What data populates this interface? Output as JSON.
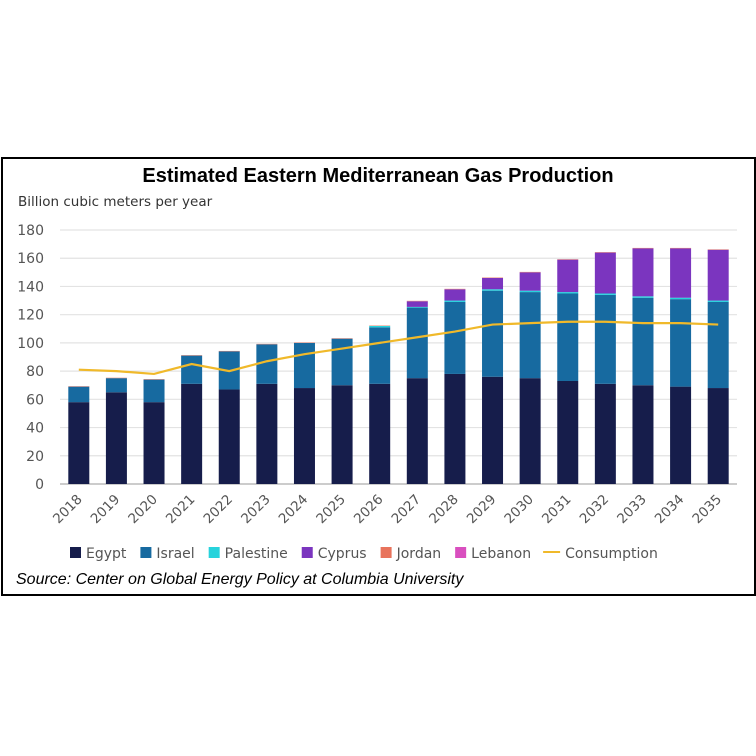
{
  "chart_data": {
    "type": "bar",
    "stacked": true,
    "title": "Estimated Eastern Mediterranean Gas Production",
    "ylabel": "Billion cubic meters per year",
    "xlabel": "",
    "ylim": [
      0,
      180
    ],
    "yticks": [
      0,
      20,
      40,
      60,
      80,
      100,
      120,
      140,
      160,
      180
    ],
    "grid": true,
    "legend_position": "bottom",
    "categories": [
      "2018",
      "2019",
      "2020",
      "2021",
      "2022",
      "2023",
      "2024",
      "2025",
      "2026",
      "2027",
      "2028",
      "2029",
      "2030",
      "2031",
      "2032",
      "2033",
      "2034",
      "2035"
    ],
    "series": [
      {
        "name": "Egypt",
        "color": "#161d4b",
        "values": [
          58,
          65,
          58,
          71,
          67,
          71,
          68,
          70,
          71,
          75,
          78,
          76,
          75,
          73,
          71,
          70,
          69,
          68
        ]
      },
      {
        "name": "Israel",
        "color": "#176aa0",
        "values": [
          11,
          10,
          16,
          20,
          27,
          28,
          32,
          33,
          40,
          50,
          51,
          61,
          61,
          62,
          63,
          62,
          62,
          61
        ]
      },
      {
        "name": "Palestine",
        "color": "#27d3dc",
        "values": [
          0,
          0,
          0,
          0,
          0,
          0,
          0,
          0,
          1,
          0.5,
          1,
          1,
          1,
          1,
          1,
          1,
          1,
          1
        ]
      },
      {
        "name": "Cyprus",
        "color": "#7b35bf",
        "values": [
          0,
          0,
          0,
          0,
          0,
          0,
          0,
          0,
          0,
          4,
          8,
          8,
          13,
          23,
          29,
          34,
          35,
          36
        ]
      },
      {
        "name": "Jordan",
        "color": "#e8735c",
        "values": [
          0.3,
          0.3,
          0.3,
          0.3,
          0.3,
          0.3,
          0.3,
          0.3,
          0.3,
          0.3,
          0.3,
          0.3,
          0.3,
          0.3,
          0.3,
          0.3,
          0.3,
          0.3
        ]
      },
      {
        "name": "Lebanon",
        "color": "#d94fbf",
        "values": [
          0,
          0,
          0,
          0,
          0,
          0,
          0,
          0,
          0,
          0,
          0,
          0,
          0,
          0,
          0,
          0,
          0,
          0
        ]
      }
    ],
    "line_series": {
      "name": "Consumption",
      "color": "#f0b92a",
      "values": [
        81,
        80,
        78,
        85,
        80,
        87,
        92,
        96,
        100,
        104,
        108,
        113,
        114,
        115,
        115,
        114,
        114,
        113
      ]
    }
  },
  "source": "Source: Center on Global Energy Policy at Columbia University"
}
